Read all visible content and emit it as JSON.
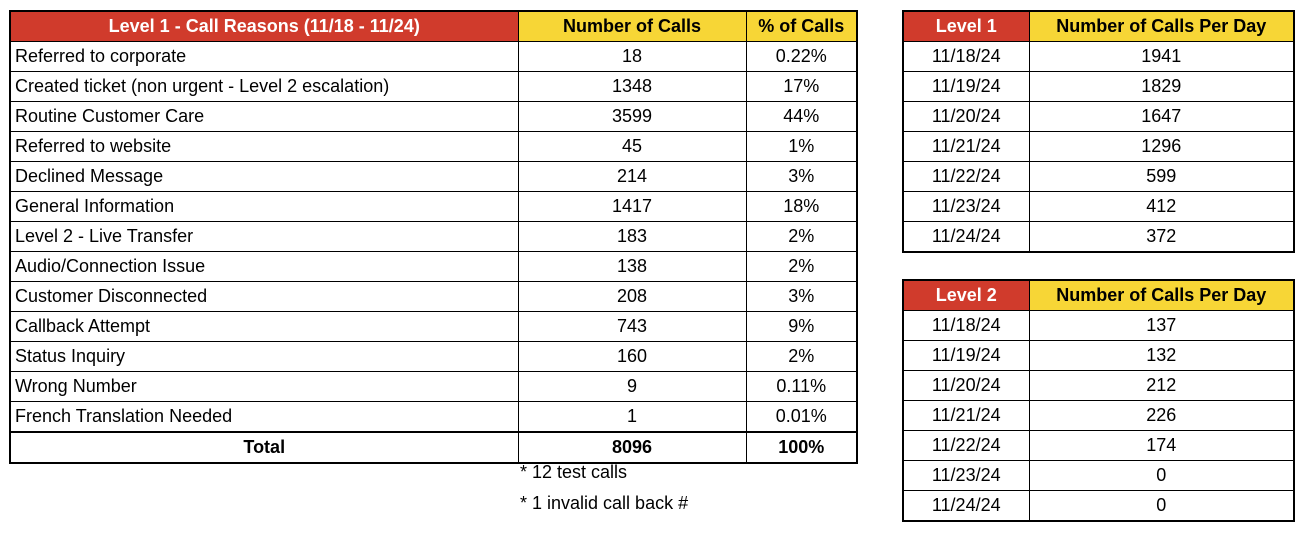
{
  "main_table": {
    "headers": [
      "Level 1 - Call Reasons (11/18 - 11/24)",
      "Number of Calls",
      "% of Calls"
    ],
    "rows": [
      {
        "reason": "Referred to corporate",
        "calls": "18",
        "pct": "0.22%"
      },
      {
        "reason": "Created ticket (non urgent - Level 2 escalation)",
        "calls": "1348",
        "pct": "17%"
      },
      {
        "reason": "Routine Customer Care",
        "calls": "3599",
        "pct": "44%"
      },
      {
        "reason": "Referred to website",
        "calls": "45",
        "pct": "1%"
      },
      {
        "reason": "Declined Message",
        "calls": "214",
        "pct": "3%"
      },
      {
        "reason": "General Information",
        "calls": "1417",
        "pct": "18%"
      },
      {
        "reason": "Level 2 - Live Transfer",
        "calls": "183",
        "pct": "2%"
      },
      {
        "reason": "Audio/Connection Issue",
        "calls": "138",
        "pct": "2%"
      },
      {
        "reason": "Customer Disconnected",
        "calls": "208",
        "pct": "3%"
      },
      {
        "reason": "Callback Attempt",
        "calls": "743",
        "pct": "9%"
      },
      {
        "reason": "Status Inquiry",
        "calls": "160",
        "pct": "2%"
      },
      {
        "reason": "Wrong Number",
        "calls": "9",
        "pct": "0.11%"
      },
      {
        "reason": "French Translation Needed",
        "calls": "1",
        "pct": "0.01%"
      }
    ],
    "total": {
      "label": "Total",
      "calls": "8096",
      "pct": "100%"
    }
  },
  "notes": [
    "* 12 test calls",
    "* 1 invalid call back #"
  ],
  "level1_table": {
    "headers": [
      "Level 1",
      "Number of Calls Per Day"
    ],
    "rows": [
      {
        "date": "11/18/24",
        "calls": "1941"
      },
      {
        "date": "11/19/24",
        "calls": "1829"
      },
      {
        "date": "11/20/24",
        "calls": "1647"
      },
      {
        "date": "11/21/24",
        "calls": "1296"
      },
      {
        "date": "11/22/24",
        "calls": "599"
      },
      {
        "date": "11/23/24",
        "calls": "412"
      },
      {
        "date": "11/24/24",
        "calls": "372"
      }
    ]
  },
  "level2_table": {
    "headers": [
      "Level 2",
      "Number of Calls Per Day"
    ],
    "rows": [
      {
        "date": "11/18/24",
        "calls": "137"
      },
      {
        "date": "11/19/24",
        "calls": "132"
      },
      {
        "date": "11/20/24",
        "calls": "212"
      },
      {
        "date": "11/21/24",
        "calls": "226"
      },
      {
        "date": "11/22/24",
        "calls": "174"
      },
      {
        "date": "11/23/24",
        "calls": "0"
      },
      {
        "date": "11/24/24",
        "calls": "0"
      }
    ]
  },
  "colors": {
    "header_red": "#d03b2c",
    "header_yellow": "#f7d636"
  }
}
